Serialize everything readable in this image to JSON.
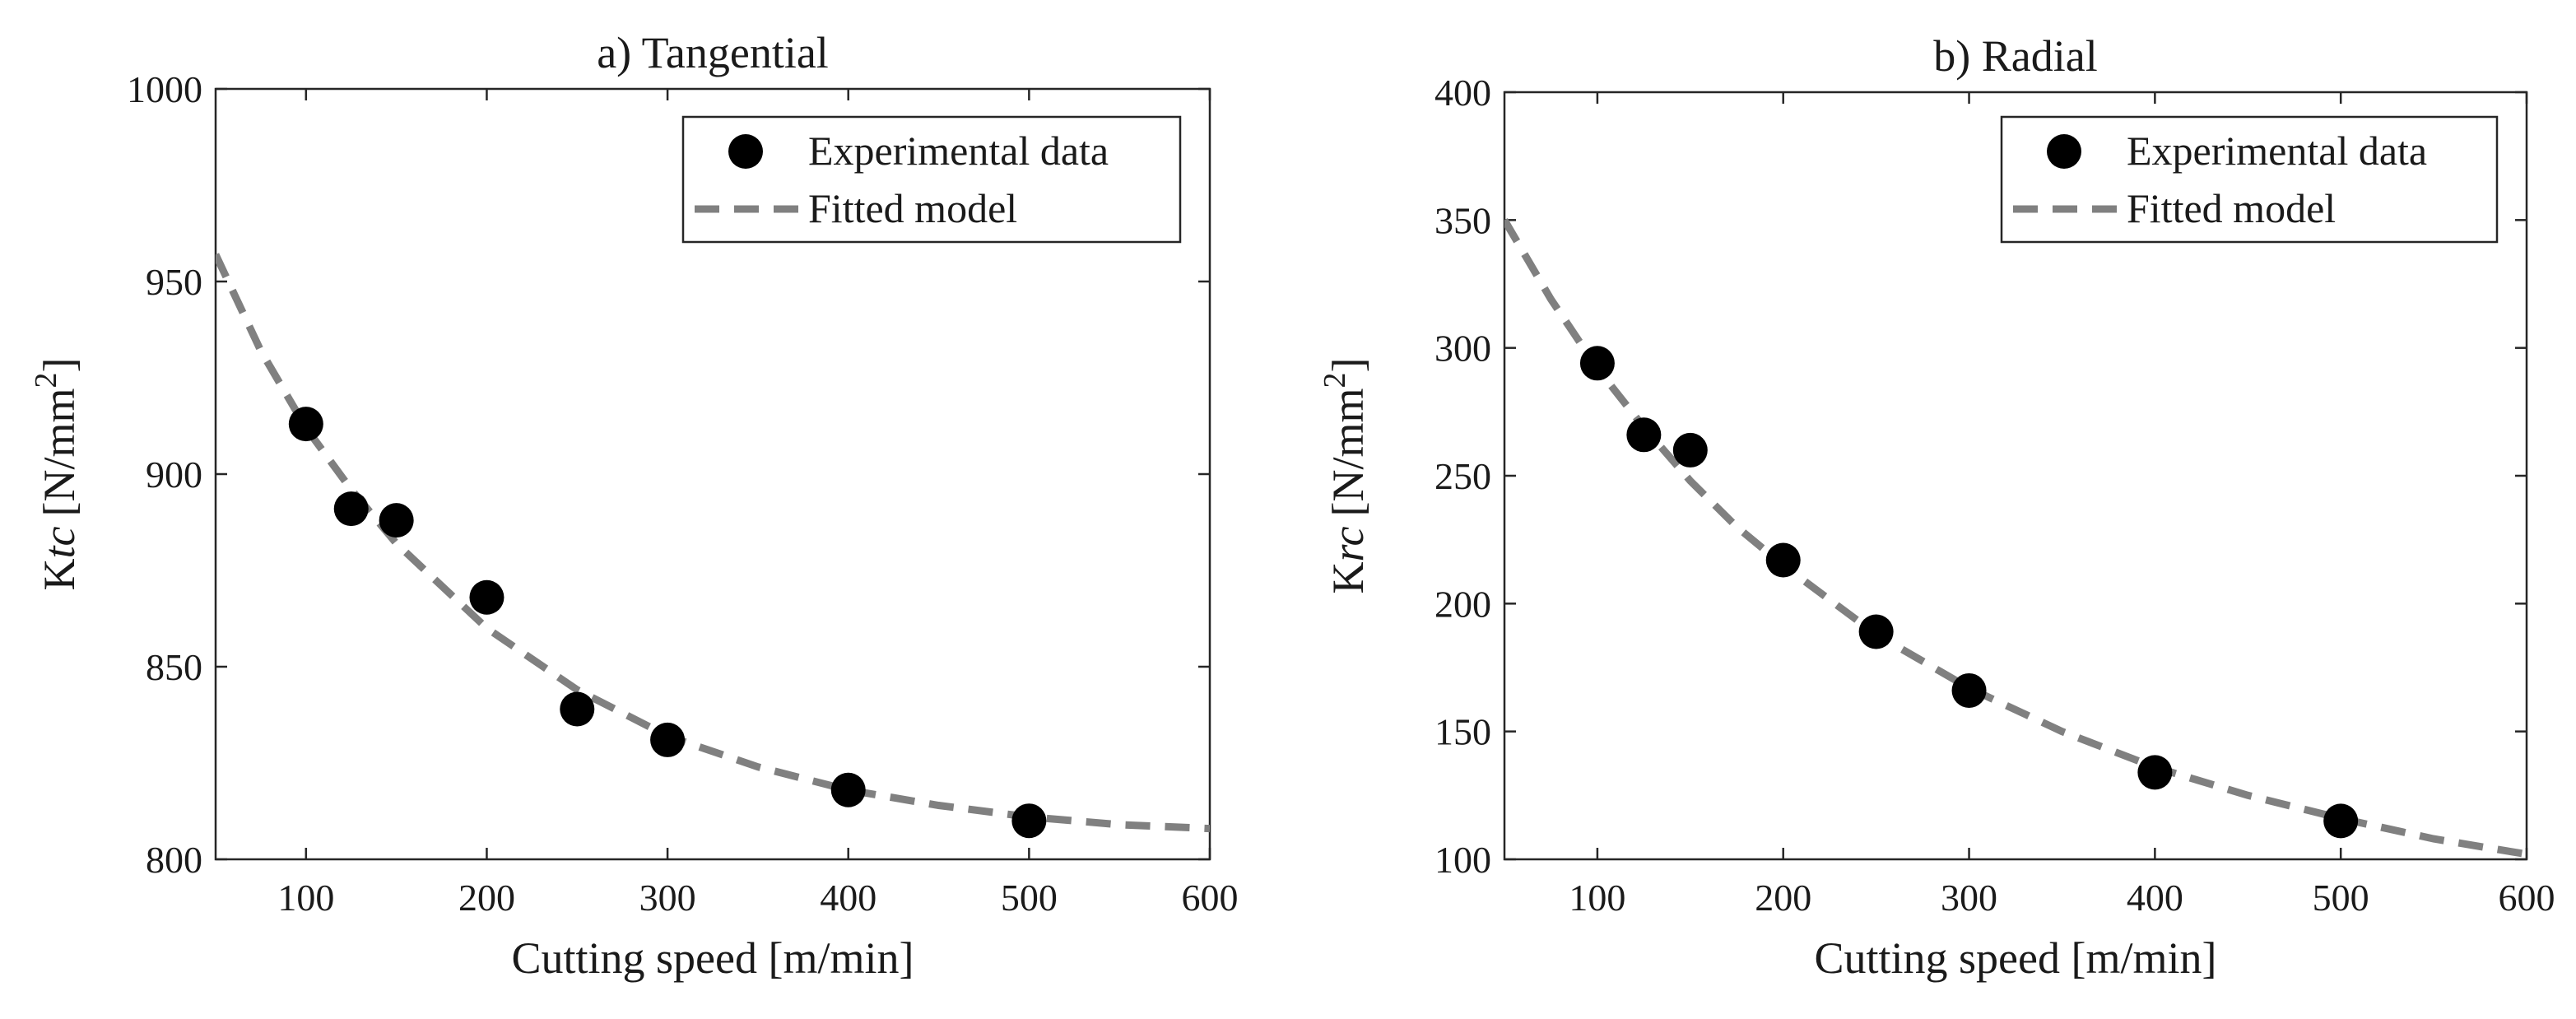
{
  "chart_data": [
    {
      "type": "scatter",
      "title": "a) Tangential",
      "xlabel": "Cutting speed [m/min]",
      "ylabel_main": "K",
      "ylabel_italic": "tc",
      "ylabel_unit": "[N/mm",
      "ylabel_sup": "2",
      "ylabel_close": "]",
      "xlim": [
        50,
        600
      ],
      "ylim": [
        800,
        1000
      ],
      "xticks": [
        100,
        200,
        300,
        400,
        500,
        600
      ],
      "yticks": [
        800,
        850,
        900,
        950,
        1000
      ],
      "legend": {
        "position": "top-right",
        "entries": [
          "Experimental data",
          "Fitted model"
        ]
      },
      "series": [
        {
          "name": "Experimental data",
          "kind": "points",
          "x": [
            100,
            125,
            150,
            200,
            250,
            300,
            400,
            500
          ],
          "y": [
            913,
            891,
            888,
            868,
            839,
            831,
            818,
            810
          ]
        },
        {
          "name": "Fitted model",
          "kind": "line",
          "x": [
            50,
            75,
            100,
            125,
            150,
            175,
            200,
            250,
            300,
            350,
            400,
            450,
            500,
            550,
            600
          ],
          "y": [
            957,
            932,
            912,
            896,
            882,
            871,
            860,
            844,
            832,
            824,
            818,
            814,
            811,
            809,
            808
          ]
        }
      ]
    },
    {
      "type": "scatter",
      "title": "b) Radial",
      "xlabel": "Cutting speed [m/min]",
      "ylabel_main": "K",
      "ylabel_italic": "rc",
      "ylabel_unit": "[N/mm",
      "ylabel_sup": "2",
      "ylabel_close": "]",
      "xlim": [
        50,
        600
      ],
      "ylim": [
        100,
        400
      ],
      "xticks": [
        100,
        200,
        300,
        400,
        500,
        600
      ],
      "yticks": [
        100,
        150,
        200,
        250,
        300,
        350,
        400
      ],
      "legend": {
        "position": "top-right",
        "entries": [
          "Experimental data",
          "Fitted model"
        ]
      },
      "series": [
        {
          "name": "Experimental data",
          "kind": "points",
          "x": [
            100,
            125,
            150,
            200,
            250,
            300,
            400,
            500
          ],
          "y": [
            294,
            266,
            260,
            217,
            189,
            166,
            134,
            115
          ]
        },
        {
          "name": "Fitted model",
          "kind": "line",
          "x": [
            50,
            75,
            100,
            125,
            150,
            175,
            200,
            250,
            300,
            350,
            400,
            450,
            500,
            550,
            600
          ],
          "y": [
            350,
            319,
            292,
            269,
            248,
            230,
            215,
            188,
            167,
            150,
            136,
            125,
            116,
            108,
            102
          ]
        }
      ]
    }
  ]
}
